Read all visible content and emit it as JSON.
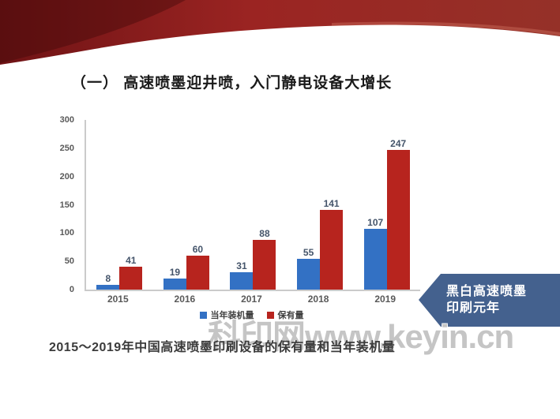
{
  "slide": {
    "title": "（一） 高速喷墨迎井喷，入门静电设备大增长",
    "caption": "2015～2019年中国高速喷墨印刷设备的保有量和当年装机量",
    "watermark": "科印网www.keyin.cn",
    "banner": {
      "line1": "黑白高速喷墨",
      "line2": "印刷元年",
      "color": "#44618E"
    },
    "colors": {
      "ribbon_left": "#6F1315",
      "ribbon_mid": "#9B2422",
      "ribbon_right": "#953128",
      "axis": "#cbcbcb"
    }
  },
  "chart_data": {
    "type": "bar",
    "title": "",
    "xlabel": "",
    "ylabel": "",
    "categories": [
      "2015",
      "2016",
      "2017",
      "2018",
      "2019"
    ],
    "series": [
      {
        "name": "当年装机量",
        "color": "#3371C4",
        "values": [
          8,
          19,
          31,
          55,
          107
        ]
      },
      {
        "name": "保有量",
        "color": "#B7241E",
        "values": [
          41,
          60,
          88,
          141,
          247
        ]
      }
    ],
    "ylim": [
      0,
      300
    ],
    "yticks": [
      0,
      50,
      100,
      150,
      200,
      250,
      300
    ],
    "grid": false,
    "legend_position": "bottom"
  }
}
